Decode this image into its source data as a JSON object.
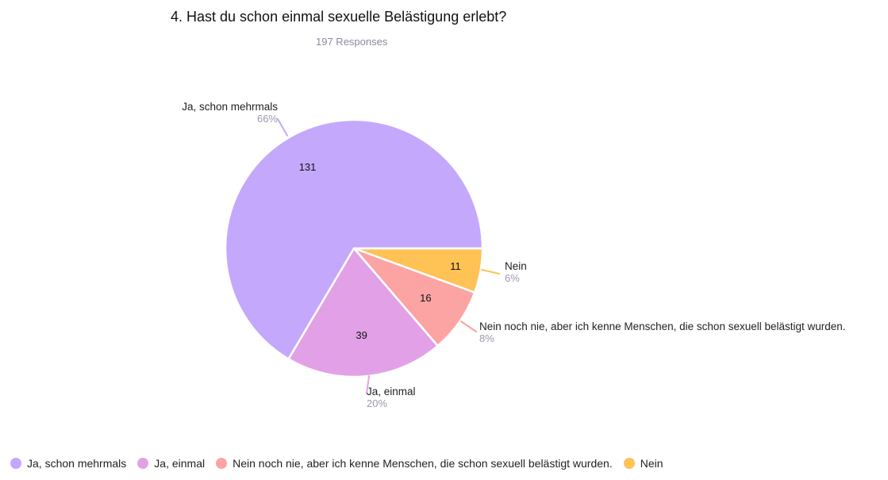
{
  "chart_data": {
    "type": "pie",
    "title": "4. Hast du schon einmal sexuelle Belästigung erlebt?",
    "subtitle": "197 Responses",
    "legend_position": "bottom",
    "slices": [
      {
        "label": "Ja, schon mehrmals",
        "value": 131,
        "percent": "66%",
        "color": "#c4a8fc"
      },
      {
        "label": "Ja, einmal",
        "value": 39,
        "percent": "20%",
        "color": "#e2a1e6"
      },
      {
        "label": "Nein noch nie, aber ich kenne Menschen, die schon sexuell belästigt wurden.",
        "value": 16,
        "percent": "8%",
        "color": "#fca3a3"
      },
      {
        "label": "Nein",
        "value": 11,
        "percent": "6%",
        "color": "#fec255"
      }
    ]
  }
}
